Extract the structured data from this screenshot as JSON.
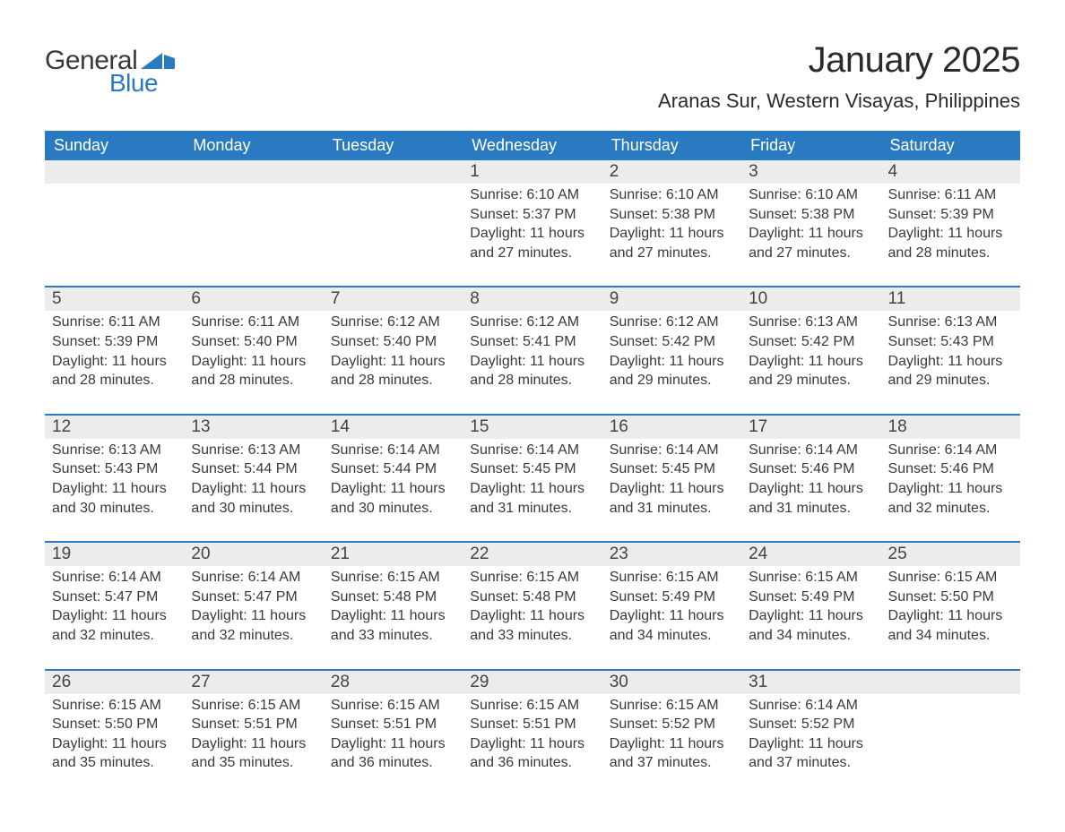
{
  "logo": {
    "text1": "General",
    "text2": "Blue"
  },
  "title": "January 2025",
  "location": "Aranas Sur, Western Visayas, Philippines",
  "colors": {
    "header_bg": "#2a7ac1",
    "header_text": "#ffffff",
    "daynum_bg": "#ececec",
    "row_divider": "#2a7ac1",
    "body_text": "#3a3a3a",
    "page_bg": "#ffffff"
  },
  "day_headers": [
    "Sunday",
    "Monday",
    "Tuesday",
    "Wednesday",
    "Thursday",
    "Friday",
    "Saturday"
  ],
  "weeks": [
    [
      null,
      null,
      null,
      {
        "n": "1",
        "sunrise": "6:10 AM",
        "sunset": "5:37 PM",
        "daylight": "11 hours and 27 minutes."
      },
      {
        "n": "2",
        "sunrise": "6:10 AM",
        "sunset": "5:38 PM",
        "daylight": "11 hours and 27 minutes."
      },
      {
        "n": "3",
        "sunrise": "6:10 AM",
        "sunset": "5:38 PM",
        "daylight": "11 hours and 27 minutes."
      },
      {
        "n": "4",
        "sunrise": "6:11 AM",
        "sunset": "5:39 PM",
        "daylight": "11 hours and 28 minutes."
      }
    ],
    [
      {
        "n": "5",
        "sunrise": "6:11 AM",
        "sunset": "5:39 PM",
        "daylight": "11 hours and 28 minutes."
      },
      {
        "n": "6",
        "sunrise": "6:11 AM",
        "sunset": "5:40 PM",
        "daylight": "11 hours and 28 minutes."
      },
      {
        "n": "7",
        "sunrise": "6:12 AM",
        "sunset": "5:40 PM",
        "daylight": "11 hours and 28 minutes."
      },
      {
        "n": "8",
        "sunrise": "6:12 AM",
        "sunset": "5:41 PM",
        "daylight": "11 hours and 28 minutes."
      },
      {
        "n": "9",
        "sunrise": "6:12 AM",
        "sunset": "5:42 PM",
        "daylight": "11 hours and 29 minutes."
      },
      {
        "n": "10",
        "sunrise": "6:13 AM",
        "sunset": "5:42 PM",
        "daylight": "11 hours and 29 minutes."
      },
      {
        "n": "11",
        "sunrise": "6:13 AM",
        "sunset": "5:43 PM",
        "daylight": "11 hours and 29 minutes."
      }
    ],
    [
      {
        "n": "12",
        "sunrise": "6:13 AM",
        "sunset": "5:43 PM",
        "daylight": "11 hours and 30 minutes."
      },
      {
        "n": "13",
        "sunrise": "6:13 AM",
        "sunset": "5:44 PM",
        "daylight": "11 hours and 30 minutes."
      },
      {
        "n": "14",
        "sunrise": "6:14 AM",
        "sunset": "5:44 PM",
        "daylight": "11 hours and 30 minutes."
      },
      {
        "n": "15",
        "sunrise": "6:14 AM",
        "sunset": "5:45 PM",
        "daylight": "11 hours and 31 minutes."
      },
      {
        "n": "16",
        "sunrise": "6:14 AM",
        "sunset": "5:45 PM",
        "daylight": "11 hours and 31 minutes."
      },
      {
        "n": "17",
        "sunrise": "6:14 AM",
        "sunset": "5:46 PM",
        "daylight": "11 hours and 31 minutes."
      },
      {
        "n": "18",
        "sunrise": "6:14 AM",
        "sunset": "5:46 PM",
        "daylight": "11 hours and 32 minutes."
      }
    ],
    [
      {
        "n": "19",
        "sunrise": "6:14 AM",
        "sunset": "5:47 PM",
        "daylight": "11 hours and 32 minutes."
      },
      {
        "n": "20",
        "sunrise": "6:14 AM",
        "sunset": "5:47 PM",
        "daylight": "11 hours and 32 minutes."
      },
      {
        "n": "21",
        "sunrise": "6:15 AM",
        "sunset": "5:48 PM",
        "daylight": "11 hours and 33 minutes."
      },
      {
        "n": "22",
        "sunrise": "6:15 AM",
        "sunset": "5:48 PM",
        "daylight": "11 hours and 33 minutes."
      },
      {
        "n": "23",
        "sunrise": "6:15 AM",
        "sunset": "5:49 PM",
        "daylight": "11 hours and 34 minutes."
      },
      {
        "n": "24",
        "sunrise": "6:15 AM",
        "sunset": "5:49 PM",
        "daylight": "11 hours and 34 minutes."
      },
      {
        "n": "25",
        "sunrise": "6:15 AM",
        "sunset": "5:50 PM",
        "daylight": "11 hours and 34 minutes."
      }
    ],
    [
      {
        "n": "26",
        "sunrise": "6:15 AM",
        "sunset": "5:50 PM",
        "daylight": "11 hours and 35 minutes."
      },
      {
        "n": "27",
        "sunrise": "6:15 AM",
        "sunset": "5:51 PM",
        "daylight": "11 hours and 35 minutes."
      },
      {
        "n": "28",
        "sunrise": "6:15 AM",
        "sunset": "5:51 PM",
        "daylight": "11 hours and 36 minutes."
      },
      {
        "n": "29",
        "sunrise": "6:15 AM",
        "sunset": "5:51 PM",
        "daylight": "11 hours and 36 minutes."
      },
      {
        "n": "30",
        "sunrise": "6:15 AM",
        "sunset": "5:52 PM",
        "daylight": "11 hours and 37 minutes."
      },
      {
        "n": "31",
        "sunrise": "6:14 AM",
        "sunset": "5:52 PM",
        "daylight": "11 hours and 37 minutes."
      },
      null
    ]
  ],
  "labels": {
    "sunrise_prefix": "Sunrise: ",
    "sunset_prefix": "Sunset: ",
    "daylight_prefix": "Daylight: "
  }
}
